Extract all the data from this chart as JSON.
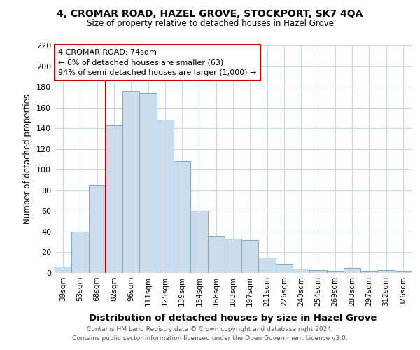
{
  "title": "4, CROMAR ROAD, HAZEL GROVE, STOCKPORT, SK7 4QA",
  "subtitle": "Size of property relative to detached houses in Hazel Grove",
  "xlabel": "Distribution of detached houses by size in Hazel Grove",
  "ylabel": "Number of detached properties",
  "categories": [
    "39sqm",
    "53sqm",
    "68sqm",
    "82sqm",
    "96sqm",
    "111sqm",
    "125sqm",
    "139sqm",
    "154sqm",
    "168sqm",
    "183sqm",
    "197sqm",
    "211sqm",
    "226sqm",
    "240sqm",
    "254sqm",
    "269sqm",
    "283sqm",
    "297sqm",
    "312sqm",
    "326sqm"
  ],
  "values": [
    6,
    40,
    85,
    143,
    176,
    174,
    148,
    108,
    60,
    36,
    33,
    32,
    15,
    9,
    4,
    3,
    2,
    5,
    2,
    3,
    2
  ],
  "bar_color": "#ccdcec",
  "bar_edge_color": "#7aaac8",
  "grid_color": "#c8d8e8",
  "background_color": "#ffffff",
  "annotation_box_color": "#ffffff",
  "annotation_border_color": "#cc0000",
  "annotation_title": "4 CROMAR ROAD: 74sqm",
  "annotation_line1": "← 6% of detached houses are smaller (63)",
  "annotation_line2": "94% of semi-detached houses are larger (1,000) →",
  "red_line_x": 2.5,
  "ylim": [
    0,
    220
  ],
  "yticks": [
    0,
    20,
    40,
    60,
    80,
    100,
    120,
    140,
    160,
    180,
    200,
    220
  ],
  "footer_line1": "Contains HM Land Registry data © Crown copyright and database right 2024.",
  "footer_line2": "Contains public sector information licensed under the Open Government Licence v3.0."
}
